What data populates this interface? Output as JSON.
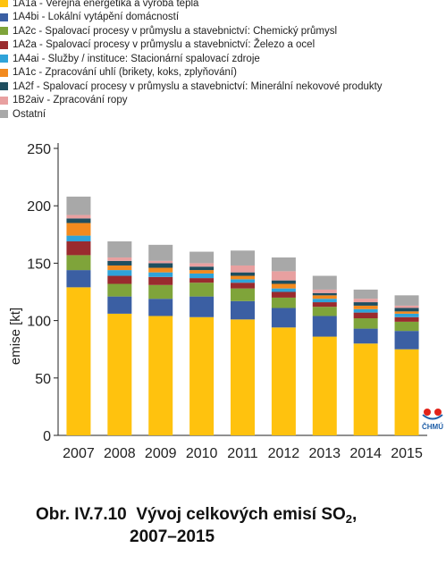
{
  "chart_data": {
    "type": "bar",
    "stacked": true,
    "categories": [
      "2007",
      "2008",
      "2009",
      "2010",
      "2011",
      "2012",
      "2013",
      "2014",
      "2015"
    ],
    "ylabel": "emise [kt]",
    "ylim": [
      0,
      250
    ],
    "yticks": [
      0,
      50,
      100,
      150,
      200,
      250
    ],
    "legend_position": "top-left",
    "grid": false,
    "series": [
      {
        "name": "1A1a - Veřejná energetika a výroba tepla",
        "color": "#FFC20E",
        "values": [
          129,
          106,
          104,
          103,
          101,
          94,
          86,
          80,
          75
        ]
      },
      {
        "name": "1A4bi - Lokální vytápění domácností",
        "color": "#3B5FA3",
        "values": [
          15,
          15,
          15,
          18,
          16,
          17,
          18,
          13,
          16
        ]
      },
      {
        "name": "1A2c - Spalovací procesy v průmyslu a stavebnictví: Chemický průmysl",
        "color": "#7FA43A",
        "values": [
          13,
          11,
          12,
          12,
          11,
          9,
          8,
          9,
          8
        ]
      },
      {
        "name": "1A2a - Spalovací procesy v průmyslu a stavebnictví: Železo a ocel",
        "color": "#9A2B2E",
        "values": [
          12,
          7,
          7,
          4,
          5,
          5,
          4,
          5,
          4
        ]
      },
      {
        "name": "1A4ai - Služby / instituce: Stacionární spalovací zdroje",
        "color": "#2FA3D9",
        "values": [
          5,
          5,
          4,
          4,
          3,
          3,
          3,
          3,
          3
        ]
      },
      {
        "name": "1A1c - Zpracování uhlí (brikety, koks, zplyňování)",
        "color": "#F28A1E",
        "values": [
          11,
          4,
          4,
          3,
          3,
          4,
          3,
          3,
          2
        ]
      },
      {
        "name": "1A2f - Spalovací procesy v průmyslu a stavebnictví: Minerální nekovové produkty",
        "color": "#1F4E5F",
        "values": [
          4,
          4,
          4,
          3,
          3,
          3,
          2,
          3,
          3
        ]
      },
      {
        "name": "1B2aiv - Zpracování ropy",
        "color": "#E8A0A0",
        "values": [
          3,
          3,
          2,
          3,
          6,
          8,
          3,
          3,
          2
        ]
      },
      {
        "name": "Ostatní",
        "color": "#A8A8A8",
        "values": [
          16,
          14,
          14,
          10,
          13,
          12,
          12,
          8,
          9
        ]
      }
    ]
  },
  "logo": {
    "label": "ČHMÚ"
  },
  "caption": {
    "prefix": "Obr. IV.7.10",
    "title": "Vývoj celkových emisí SO",
    "subscript": "2",
    "suffix": ",",
    "years": "2007–2015"
  }
}
